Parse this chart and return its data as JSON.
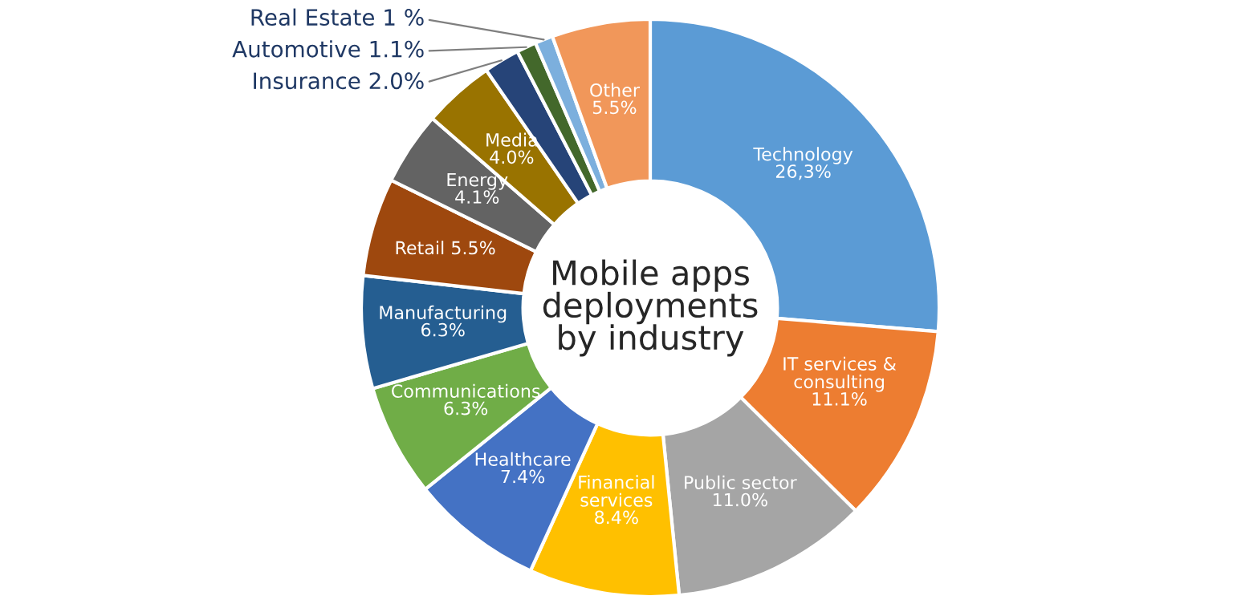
{
  "chart_data": {
    "type": "donut",
    "title": "Mobile apps deployments by industry",
    "categories": [
      "Technology",
      "IT services & consulting",
      "Public sector",
      "Financial services",
      "Healthcare",
      "Communications",
      "Manufacturing",
      "Retail",
      "Energy",
      "Media",
      "Insurance",
      "Automotive",
      "Real Estate",
      "Other"
    ],
    "values": [
      26.3,
      11.1,
      11.0,
      8.4,
      7.4,
      6.3,
      6.3,
      5.5,
      4.1,
      4.0,
      2.0,
      1.1,
      1,
      5.5
    ],
    "value_labels": [
      "26,3%",
      "11.1%",
      "11.0%",
      "8.4%",
      "7.4%",
      "6.3%",
      "6.3%",
      "5.5%",
      "4.1%",
      "4.0%",
      "2.0%",
      "1.1%",
      "1 %",
      "5.5%"
    ],
    "colors": [
      "#5b9bd5",
      "#ed7d31",
      "#a5a5a5",
      "#ffc000",
      "#4472c4",
      "#70ad47",
      "#255e91",
      "#9e480e",
      "#636363",
      "#997300",
      "#264478",
      "#43682b",
      "#7cafdd",
      "#f1975a"
    ],
    "legend": false
  }
}
